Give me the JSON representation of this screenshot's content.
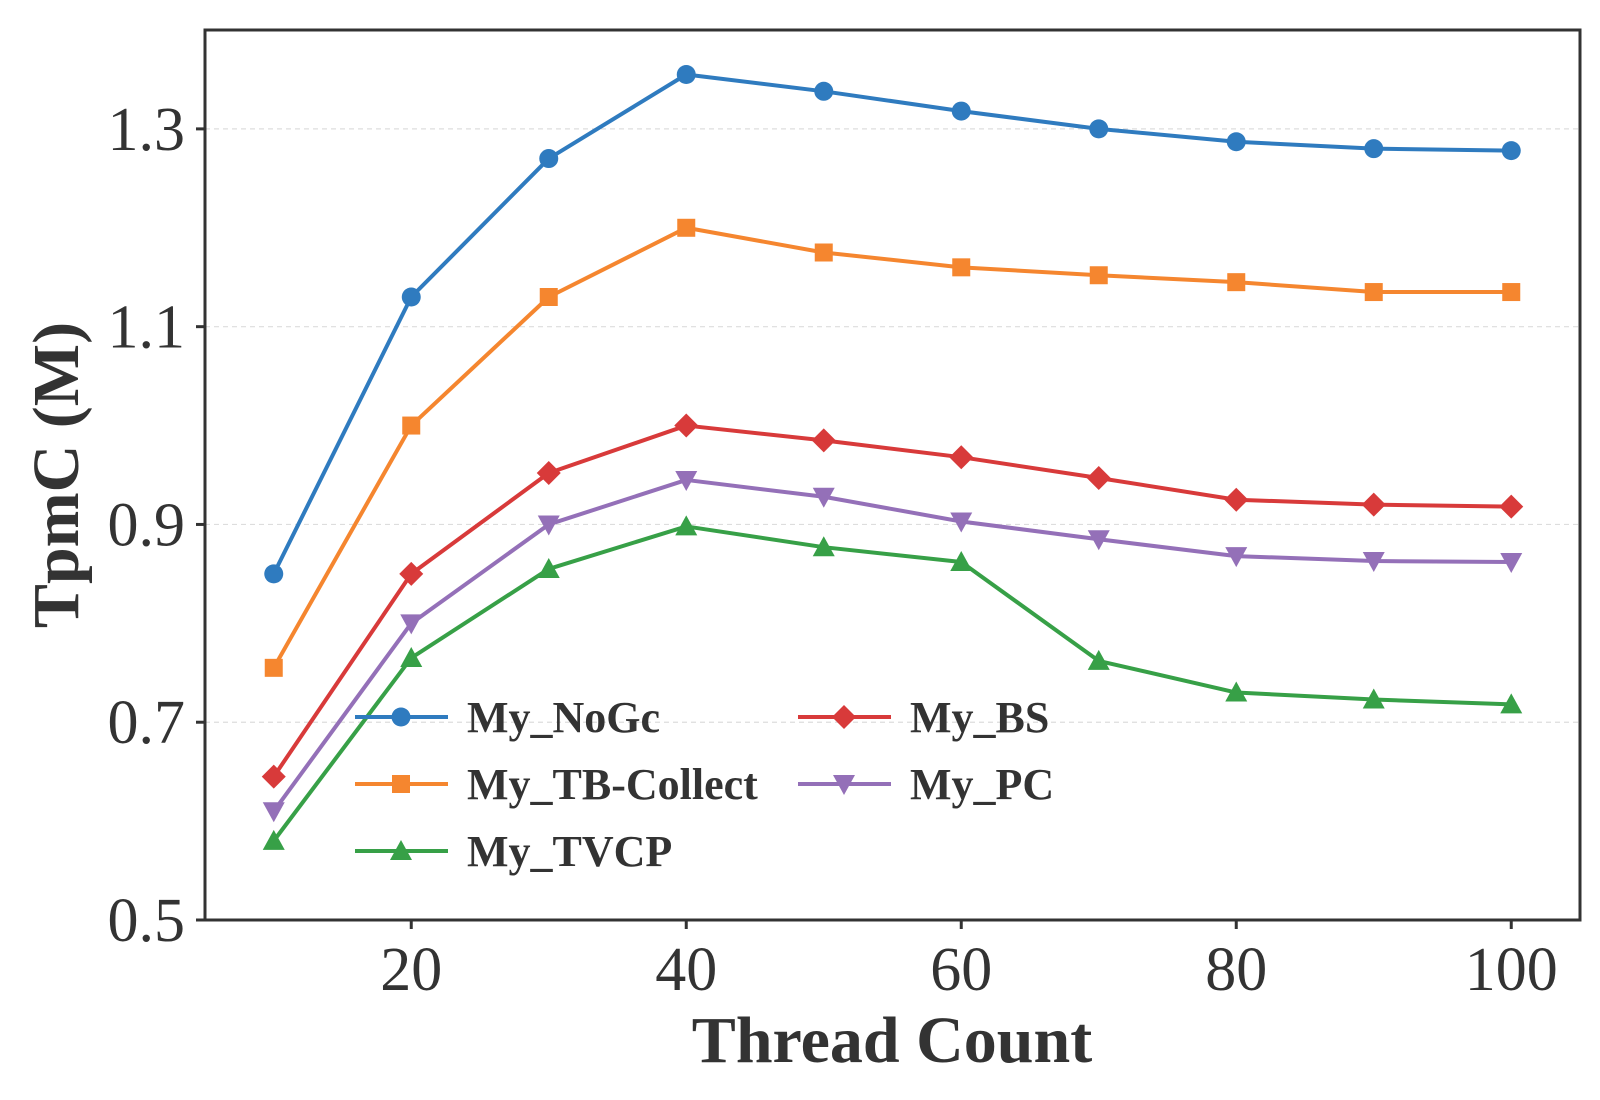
{
  "chart_data": {
    "type": "line",
    "xlabel": "Thread Count",
    "ylabel": "TpmC (M)",
    "xlim": [
      5,
      105
    ],
    "ylim": [
      0.5,
      1.4
    ],
    "xticks": [
      20,
      40,
      60,
      80,
      100
    ],
    "yticks": [
      0.5,
      0.7,
      0.9,
      1.1,
      1.3
    ],
    "ytick_labels": [
      "0.5",
      "0.7",
      "0.9",
      "1.1",
      "1.3"
    ],
    "grid": "horizontal dashed",
    "legend_position": "lower-left, two columns",
    "x": [
      10,
      20,
      30,
      40,
      50,
      60,
      70,
      80,
      90,
      100
    ],
    "series": [
      {
        "name": "My_NoGc",
        "color": "#2f7bbf",
        "marker": "circle",
        "values": [
          0.85,
          1.13,
          1.27,
          1.355,
          1.338,
          1.318,
          1.3,
          1.287,
          1.28,
          1.278
        ]
      },
      {
        "name": "My_TB-Collect",
        "color": "#f5862f",
        "marker": "square",
        "values": [
          0.755,
          1.0,
          1.13,
          1.2,
          1.175,
          1.16,
          1.152,
          1.145,
          1.135,
          1.135
        ]
      },
      {
        "name": "My_BS",
        "color": "#d83a3a",
        "marker": "diamond",
        "values": [
          0.645,
          0.85,
          0.952,
          1.0,
          0.985,
          0.968,
          0.947,
          0.925,
          0.92,
          0.918
        ]
      },
      {
        "name": "My_PC",
        "color": "#9470b8",
        "marker": "triangle-down",
        "values": [
          0.61,
          0.8,
          0.9,
          0.945,
          0.928,
          0.903,
          0.885,
          0.868,
          0.863,
          0.862
        ]
      },
      {
        "name": "My_TVCP",
        "color": "#37a047",
        "marker": "triangle-up",
        "values": [
          0.58,
          0.765,
          0.855,
          0.898,
          0.877,
          0.862,
          0.762,
          0.73,
          0.723,
          0.718
        ]
      }
    ]
  }
}
